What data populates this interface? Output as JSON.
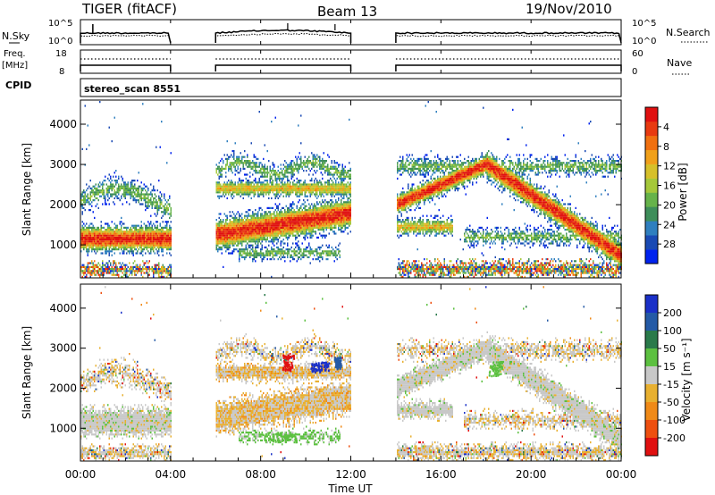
{
  "header": {
    "radar": "TIGER (fitACF)",
    "beam": "Beam 13",
    "date": "19/Nov/2010"
  },
  "top_panels": {
    "nsky_label": "N.Sky",
    "nsky_ticks": [
      "10^5",
      "10^0"
    ],
    "nsearch_label": "N.Search",
    "nsearch_ticks": [
      "10^5",
      "10^0"
    ],
    "freq_label": "Freq.",
    "freq_unit": "[MHz]",
    "freq_ticks": [
      "18",
      "8"
    ],
    "nave_label": "Nave",
    "nave_ticks": [
      "60",
      "0"
    ],
    "cpid_label": "CPID",
    "cpid_value": "stereo_scan 8551"
  },
  "chart_data": [
    {
      "type": "heatmap",
      "name": "power",
      "ylabel": "Slant Range [km]",
      "yticks": [
        1000,
        2000,
        3000,
        4000
      ],
      "ylim": [
        180,
        4600
      ],
      "xlim_hours": [
        0,
        24
      ],
      "colorbar_label": "Power [dB]",
      "colorbar_ticks": [
        "4",
        "8",
        "12",
        "16",
        "20",
        "24",
        "28"
      ],
      "colorbar_colors": [
        "#0022ee",
        "#1a4ab4",
        "#2f7fbf",
        "#3e8e5a",
        "#66b34a",
        "#a5c83a",
        "#d6c02a",
        "#f0a01a",
        "#f07010",
        "#e83a10",
        "#e01010"
      ],
      "data_gaps_hours": [
        [
          4,
          6
        ],
        [
          12,
          14
        ]
      ]
    },
    {
      "type": "heatmap",
      "name": "velocity",
      "ylabel": "Slant Range [km]",
      "yticks": [
        1000,
        2000,
        3000,
        4000
      ],
      "ylim": [
        180,
        4600
      ],
      "xlim_hours": [
        0,
        24
      ],
      "colorbar_label": "Velocity [m s⁻¹]",
      "colorbar_ticks": [
        "200",
        "100",
        "50",
        "15",
        "-15",
        "-50",
        "-100",
        "-200"
      ],
      "colorbar_colors": [
        "#1a30c8",
        "#245aa6",
        "#2a7a4a",
        "#5cc040",
        "#c8c8c8",
        "#e8b030",
        "#f08a18",
        "#ee5010",
        "#e01010"
      ],
      "data_gaps_hours": [
        [
          4,
          6
        ],
        [
          12,
          14
        ]
      ]
    }
  ],
  "xaxis": {
    "label": "Time UT",
    "ticks": [
      "00:00",
      "04:00",
      "08:00",
      "12:00",
      "16:00",
      "20:00",
      "00:00"
    ]
  }
}
